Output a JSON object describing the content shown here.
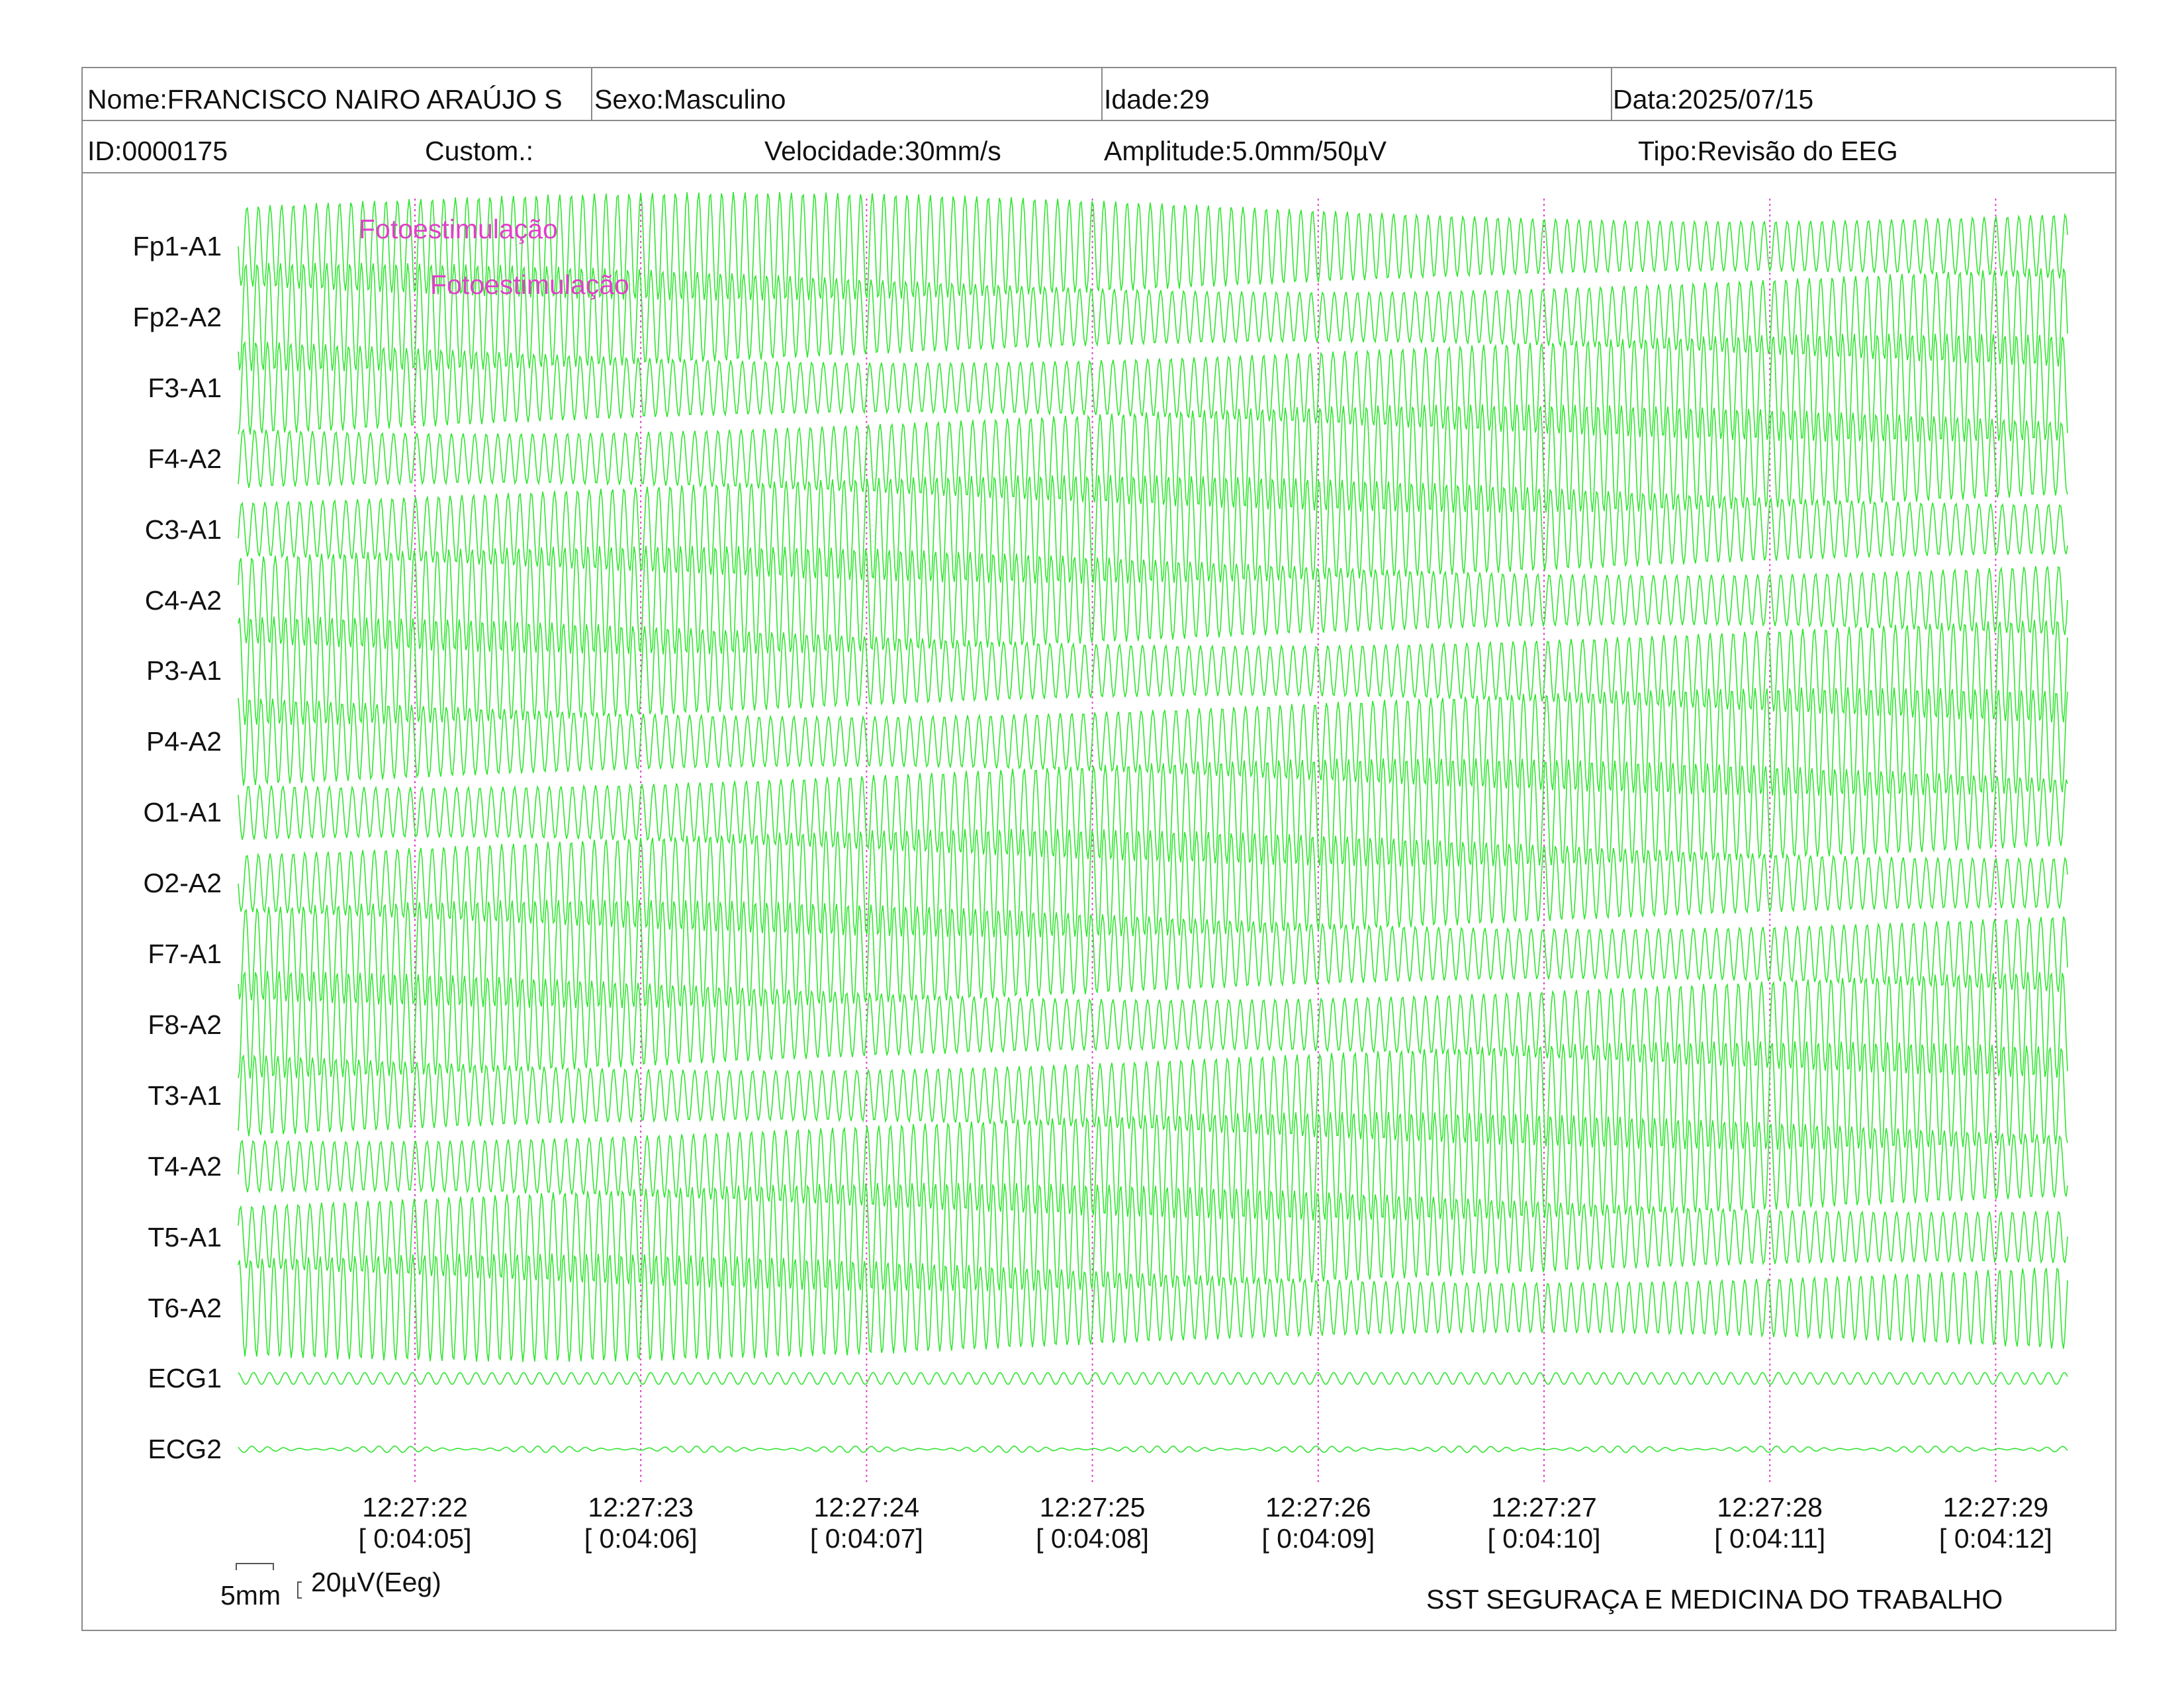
{
  "header": {
    "nome": "Nome:FRANCISCO NAIRO ARAÚJO S",
    "sexo": "Sexo:Masculino",
    "idade": "Idade:29",
    "data": "Data:2025/07/15",
    "id": "ID:0000175",
    "custom": "Custom.:",
    "velocidade": "Velocidade:30mm/s",
    "amplitude": "Amplitude:5.0mm/50µV",
    "tipo": "Tipo:Revisão do EEG"
  },
  "channels": [
    "Fp1-A1",
    "Fp2-A2",
    "F3-A1",
    "F4-A2",
    "C3-A1",
    "C4-A2",
    "P3-A1",
    "P4-A2",
    "O1-A1",
    "O2-A2",
    "F7-A1",
    "F8-A2",
    "T3-A1",
    "T4-A2",
    "T5-A1",
    "T6-A2",
    "ECG1",
    "ECG2"
  ],
  "markers": [
    {
      "label": "Fotoestimulação",
      "channel": 0
    },
    {
      "label": "Fotoestimulação",
      "channel": 1
    }
  ],
  "timestamps": [
    {
      "clock": "12:27:22",
      "elapsed": "[ 0:04:05]"
    },
    {
      "clock": "12:27:23",
      "elapsed": "[ 0:04:06]"
    },
    {
      "clock": "12:27:24",
      "elapsed": "[ 0:04:07]"
    },
    {
      "clock": "12:27:25",
      "elapsed": "[ 0:04:08]"
    },
    {
      "clock": "12:27:26",
      "elapsed": "[ 0:04:09]"
    },
    {
      "clock": "12:27:27",
      "elapsed": "[ 0:04:10]"
    },
    {
      "clock": "12:27:28",
      "elapsed": "[ 0:04:11]"
    },
    {
      "clock": "12:27:29",
      "elapsed": "[ 0:04:12]"
    }
  ],
  "scale": {
    "length": "5mm",
    "amplitude": "20µV(Eeg)"
  },
  "footer": {
    "clinic": "SST SEGURAÇA E MEDICINA DO TRABALHO"
  },
  "colors": {
    "trace": "#33e533",
    "marker": "#e040c8",
    "border": "#8a8a8a"
  }
}
